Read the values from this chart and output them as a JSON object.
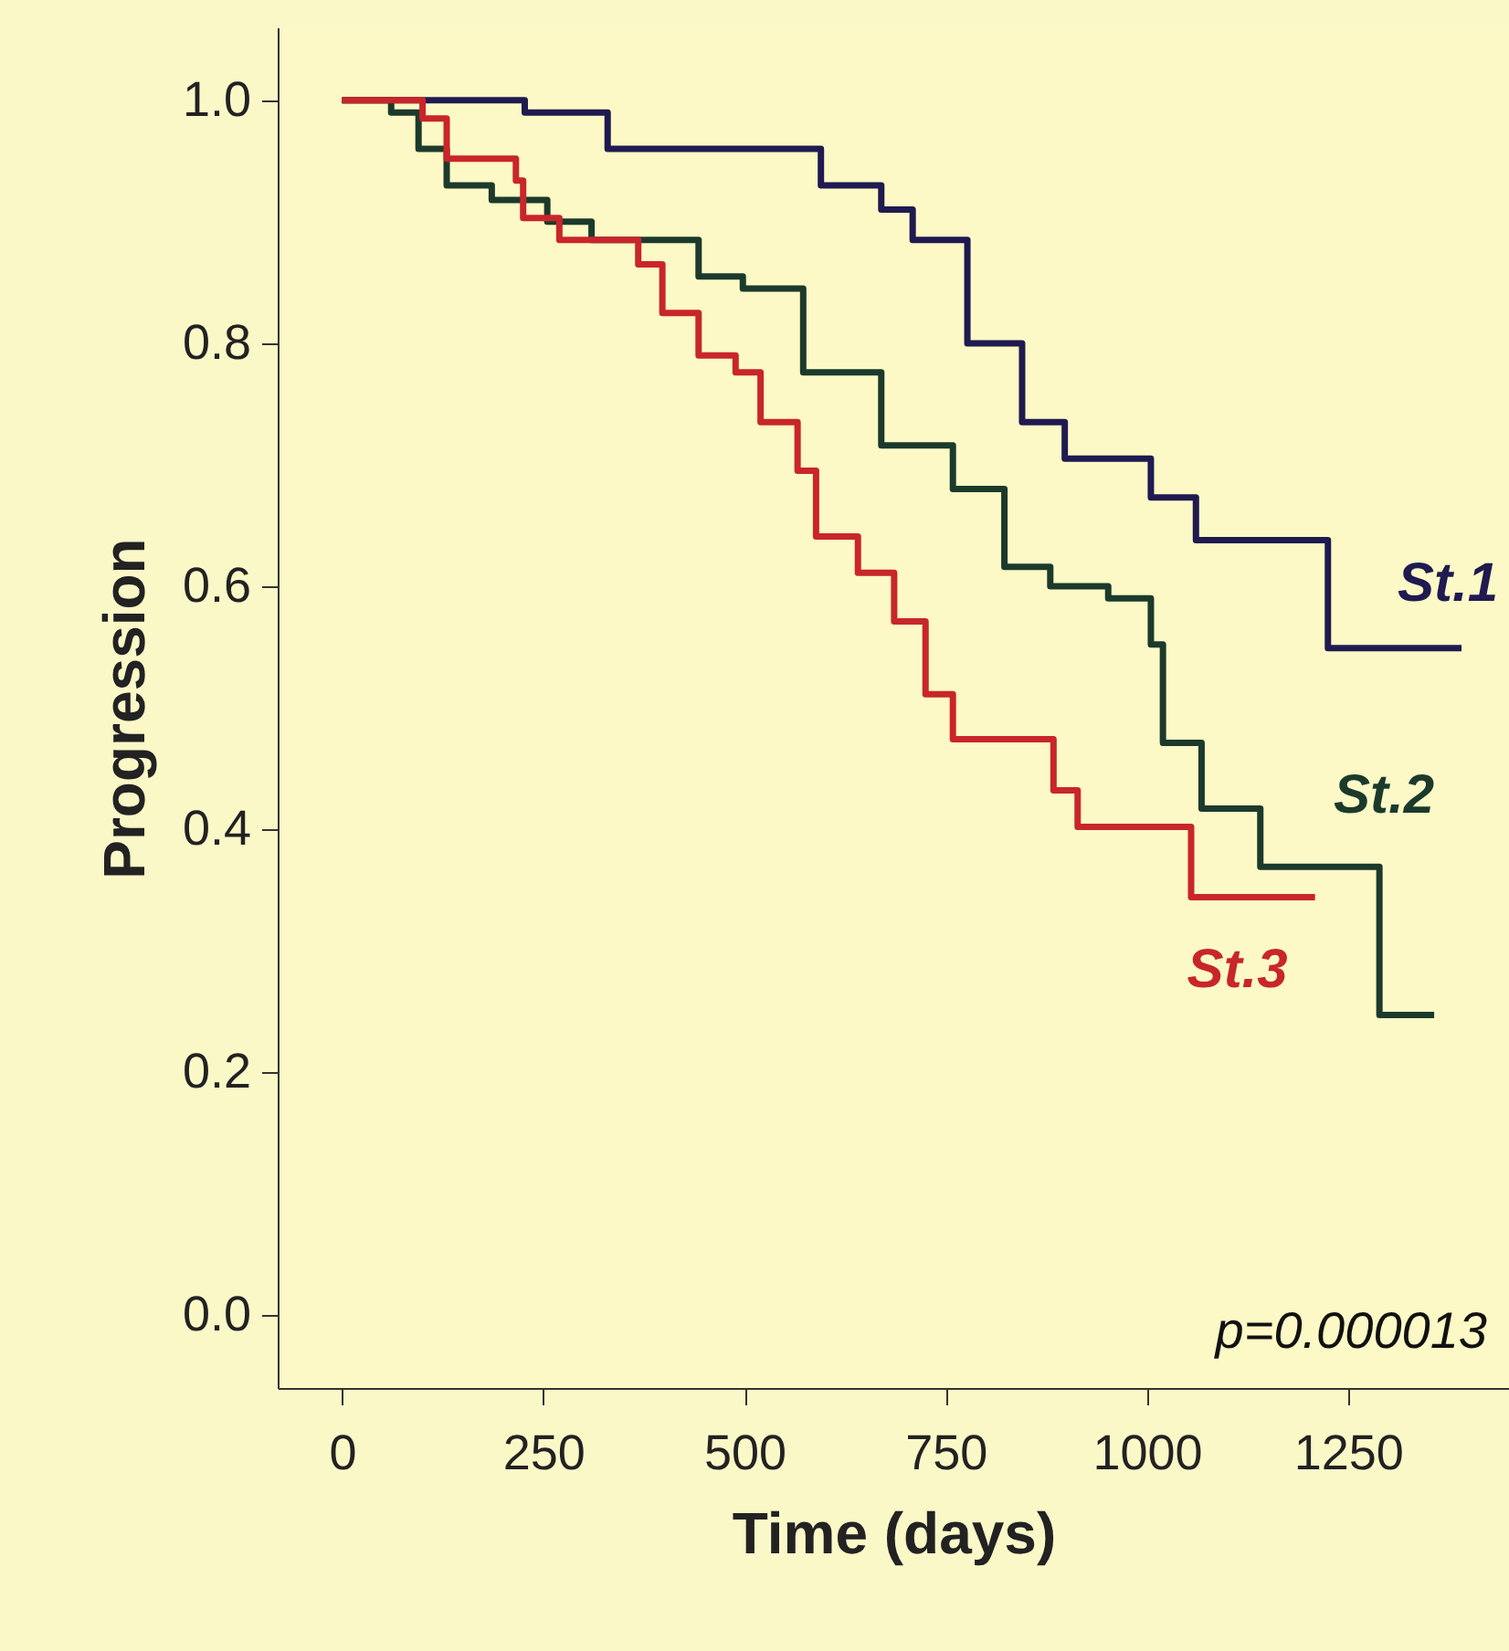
{
  "chart_data": {
    "type": "step",
    "xlabel": "Time (days)",
    "ylabel": "Progression",
    "xlim": [
      -80,
      1450
    ],
    "ylim": [
      -0.06,
      1.06
    ],
    "xticks": [
      0,
      250,
      500,
      750,
      1000,
      1250
    ],
    "yticks": [
      {
        "value": 0,
        "label": "0.0"
      },
      0.2,
      0.4,
      0.6,
      0.8,
      {
        "value": 1,
        "label": "1.0"
      }
    ],
    "grid": false,
    "annotations": [
      "p=0.000013"
    ],
    "series": [
      {
        "name": "St.1",
        "color": "#1f1a50",
        "x": [
          0,
          227,
          330,
          557,
          595,
          670,
          709,
          777,
          845,
          898,
          970,
          1005,
          1061,
          1225,
          1391
        ],
        "values": [
          1.0,
          0.99,
          0.96,
          0.96,
          0.93,
          0.91,
          0.885,
          0.8,
          0.735,
          0.705,
          0.705,
          0.673,
          0.638,
          0.549,
          0.549
        ]
      },
      {
        "name": "St.2",
        "color": "#1c3a2c",
        "x": [
          0,
          61,
          95,
          130,
          186,
          255,
          310,
          407,
          443,
          498,
          573,
          670,
          759,
          823,
          880,
          952,
          1005,
          1020,
          1068,
          1141,
          1289,
          1357
        ],
        "values": [
          1.0,
          0.99,
          0.96,
          0.93,
          0.918,
          0.9,
          0.885,
          0.885,
          0.855,
          0.845,
          0.776,
          0.716,
          0.68,
          0.616,
          0.6,
          0.59,
          0.552,
          0.471,
          0.417,
          0.369,
          0.247,
          0.247
        ]
      },
      {
        "name": "St.3",
        "color": "#c8262a",
        "x": [
          0,
          100,
          130,
          202,
          216,
          225,
          270,
          339,
          368,
          398,
          443,
          489,
          520,
          566,
          589,
          641,
          686,
          725,
          759,
          861,
          884,
          914,
          1055,
          1209
        ],
        "values": [
          1.0,
          0.985,
          0.952,
          0.952,
          0.934,
          0.903,
          0.885,
          0.885,
          0.865,
          0.825,
          0.79,
          0.776,
          0.735,
          0.695,
          0.641,
          0.611,
          0.571,
          0.511,
          0.474,
          0.474,
          0.432,
          0.402,
          0.344,
          0.344
        ]
      }
    ]
  }
}
